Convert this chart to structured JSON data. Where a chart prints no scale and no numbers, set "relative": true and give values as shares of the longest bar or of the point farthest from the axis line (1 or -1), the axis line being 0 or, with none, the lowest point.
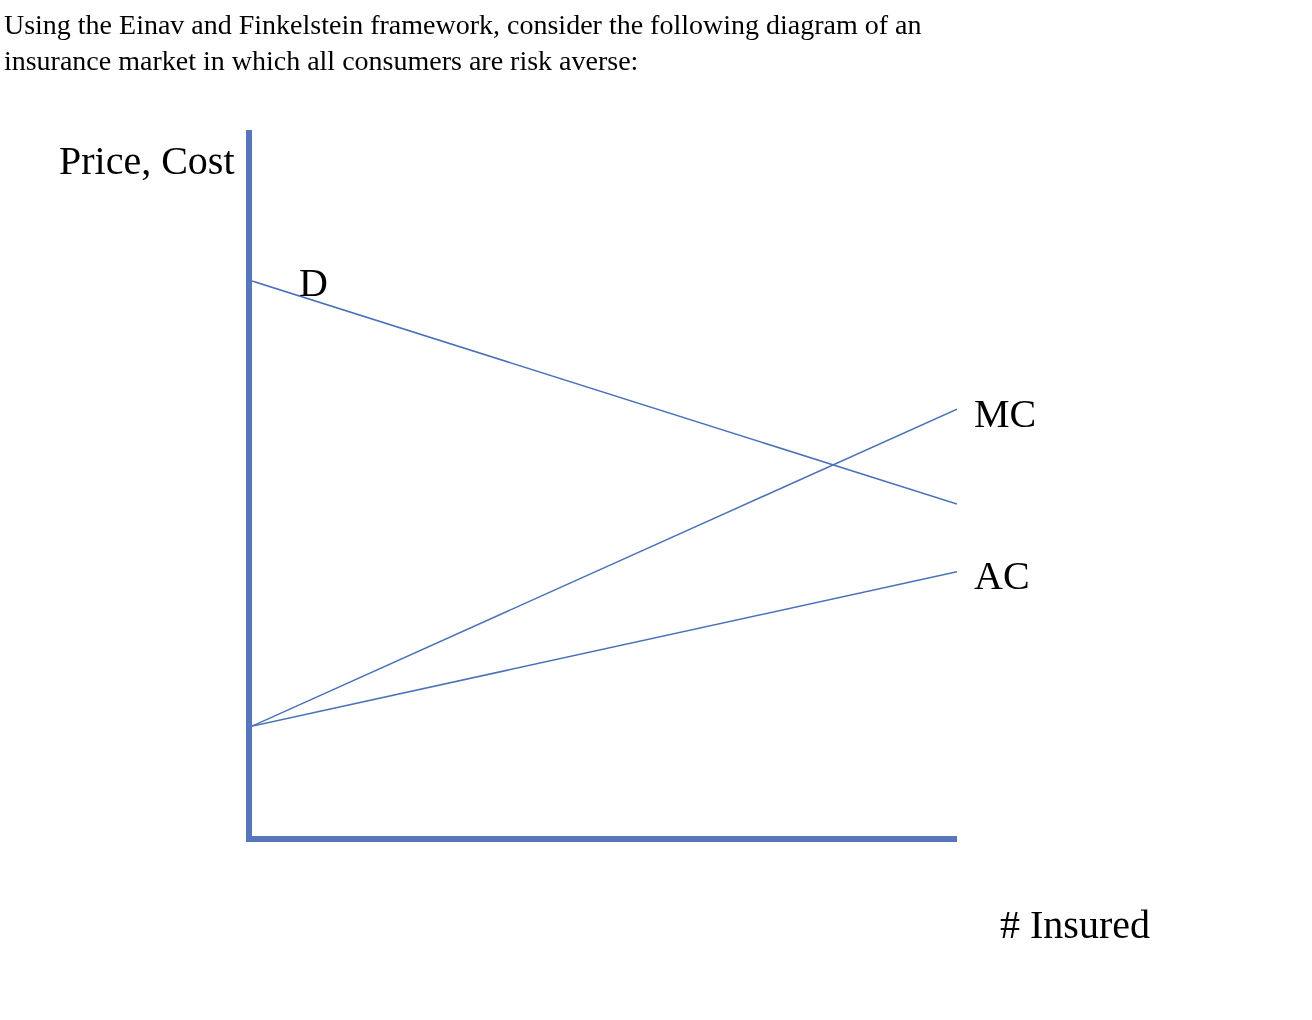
{
  "chart_data": {
    "type": "line",
    "title": "Using the Einav and Finkelstein framework, consider the following diagram of an\ninsurance market in which all consumers are risk averse:",
    "xlabel": "# Insured",
    "ylabel": "Price, Cost",
    "relative": true,
    "tick_labels": false,
    "legend": false,
    "categories": [
      null,
      null
    ],
    "series": [
      {
        "name": "D",
        "color": "#4a72b8",
        "values": [
          1,
          0.598
        ]
      },
      {
        "name": "MC",
        "color": "#4a72b8",
        "values": [
          0.198,
          0.769
        ]
      },
      {
        "name": "AC",
        "color": "#4a72b8",
        "values": [
          0.198,
          0.476
        ]
      }
    ]
  }
}
